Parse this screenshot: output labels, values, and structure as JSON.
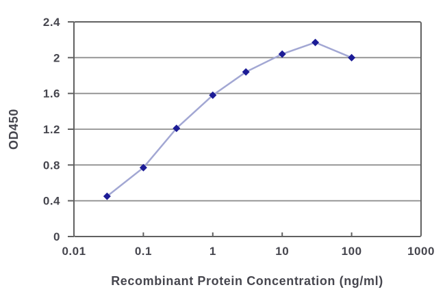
{
  "chart_data": {
    "type": "line",
    "title": "",
    "xlabel": "Recombinant Protein Concentration (ng/ml)",
    "ylabel": "OD450",
    "x_scale": "log",
    "xlim": [
      0.01,
      1000
    ],
    "ylim": [
      0,
      2.4
    ],
    "x_ticks": [
      0.01,
      0.1,
      1,
      10,
      100,
      1000
    ],
    "x_tick_labels": [
      "0.01",
      "0.1",
      "1",
      "10",
      "100",
      "1000"
    ],
    "y_ticks": [
      0,
      0.4,
      0.8,
      1.2,
      1.6,
      2,
      2.4
    ],
    "y_tick_labels": [
      "0",
      "0.4",
      "0.8",
      "1.2",
      "1.6",
      "2",
      "2.4"
    ],
    "grid": "horizontal",
    "legend": "none",
    "series": [
      {
        "name": "OD450",
        "marker": "diamond",
        "x": [
          0.03,
          0.1,
          0.3,
          1,
          3,
          10,
          30,
          100
        ],
        "y": [
          0.45,
          0.77,
          1.21,
          1.58,
          1.84,
          2.04,
          2.17,
          2.0
        ]
      }
    ],
    "colors": {
      "line": "#a2a7d3",
      "marker": "#1c1c96",
      "gridline": "#8f8f8f",
      "frame": "#606060",
      "text": "#46464e",
      "background": "#ffffff"
    }
  }
}
